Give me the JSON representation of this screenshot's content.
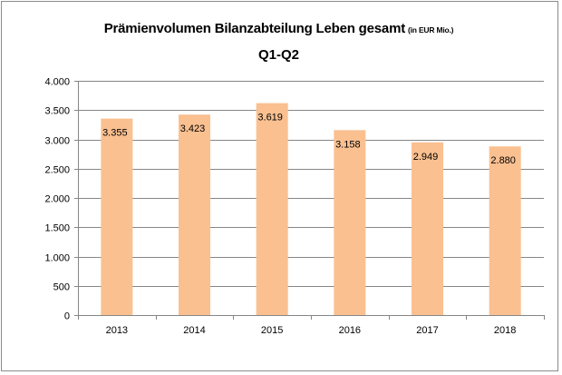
{
  "chart_data": {
    "type": "bar",
    "title": "Prämienvolumen Bilanzabteilung Leben gesamt",
    "title_unit": "(in EUR Mio.)",
    "subtitle": "Q1-Q2",
    "xlabel": "",
    "ylabel": "",
    "categories": [
      "2013",
      "2014",
      "2015",
      "2016",
      "2017",
      "2018"
    ],
    "values": [
      3355,
      3423,
      3619,
      3158,
      2949,
      2880
    ],
    "value_labels": [
      "3.355",
      "3.423",
      "3.619",
      "3.158",
      "2.949",
      "2.880"
    ],
    "ylim": [
      0,
      4000
    ],
    "yticks": [
      0,
      500,
      1000,
      1500,
      2000,
      2500,
      3000,
      3500,
      4000
    ],
    "ytick_labels": [
      "0",
      "500",
      "1.000",
      "1.500",
      "2.000",
      "2.500",
      "3.000",
      "3.500",
      "4.000"
    ],
    "grid": true,
    "legend": "none",
    "colors": {
      "bar": "#FAC090",
      "grid": "#868686",
      "axis": "#868686"
    }
  }
}
